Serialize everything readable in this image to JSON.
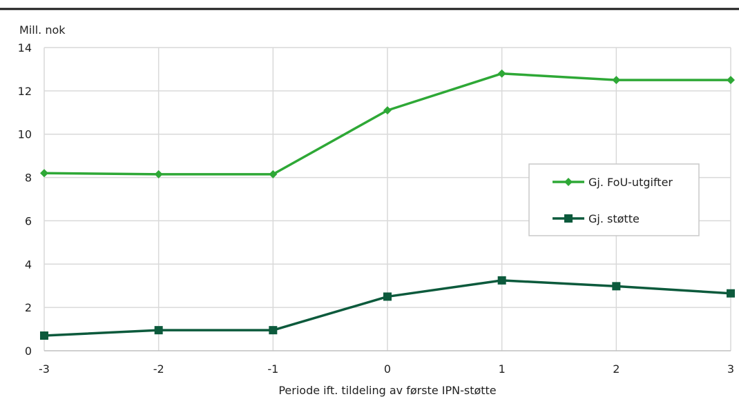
{
  "chart_data": {
    "type": "line",
    "ylabel": "Mill. nok",
    "xlabel": "Periode ift. tildeling av første IPN-støtte",
    "x": [
      -3,
      -2,
      -1,
      0,
      1,
      2,
      3
    ],
    "xlim": [
      -3,
      3
    ],
    "ylim": [
      0,
      14
    ],
    "y_ticks": [
      0,
      2,
      4,
      6,
      8,
      10,
      12,
      14
    ],
    "x_ticks": [
      "-3",
      "-2",
      "-1",
      "0",
      "1",
      "2",
      "3"
    ],
    "grid": true,
    "legend_position": "right",
    "series": [
      {
        "name": "Gj. FoU-utgifter",
        "values": [
          8.2,
          8.15,
          8.15,
          11.1,
          12.8,
          12.5,
          12.5
        ],
        "color": "#2ea836",
        "marker": "diamond"
      },
      {
        "name": "Gj. støtte",
        "values": [
          0.7,
          0.95,
          0.95,
          2.5,
          3.25,
          2.98,
          2.65
        ],
        "color": "#0c5a3c",
        "marker": "square"
      }
    ]
  }
}
